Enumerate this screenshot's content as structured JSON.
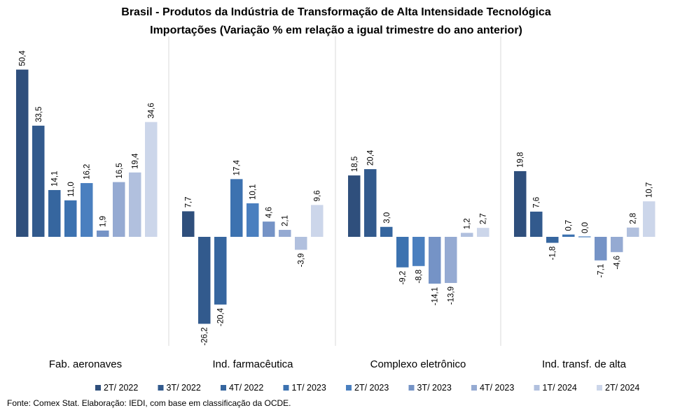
{
  "chart_data": {
    "type": "bar",
    "title": "Brasil - Produtos da Indústria de Transformação  de Alta Intensidade Tecnológica",
    "subtitle": "Importações (Variação % em relação a igual trimestre do ano anterior)",
    "categories": [
      "Fab. aeronaves",
      "Ind. farmacêutica",
      "Complexo eletrônico",
      "Ind. transf. de alta"
    ],
    "series": [
      {
        "name": "2T/ 2022",
        "color": "#2f4f7c",
        "values": [
          50.4,
          7.7,
          18.5,
          19.8
        ]
      },
      {
        "name": "3T/ 2022",
        "color": "#325a8d",
        "values": [
          33.5,
          -26.2,
          20.4,
          7.6
        ]
      },
      {
        "name": "4T/ 2022",
        "color": "#36669f",
        "values": [
          14.1,
          -20.4,
          3.0,
          -1.8
        ]
      },
      {
        "name": "1T/ 2023",
        "color": "#3c72b0",
        "values": [
          11.0,
          17.4,
          -9.2,
          0.7
        ]
      },
      {
        "name": "2T/ 2023",
        "color": "#4a7fbf",
        "values": [
          16.2,
          10.1,
          -8.8,
          0.0
        ]
      },
      {
        "name": "3T/ 2023",
        "color": "#7593c6",
        "values": [
          1.9,
          4.6,
          -14.1,
          -7.1
        ]
      },
      {
        "name": "4T/ 2023",
        "color": "#95aad2",
        "values": [
          16.5,
          2.1,
          -13.9,
          -4.6
        ]
      },
      {
        "name": "1T/ 2024",
        "color": "#b1c0de",
        "values": [
          19.4,
          -3.9,
          1.2,
          2.8
        ]
      },
      {
        "name": "2T/ 2024",
        "color": "#ccd6ea",
        "values": [
          34.6,
          9.6,
          2.7,
          10.7
        ]
      }
    ],
    "value_labels": [
      [
        "50,4",
        "33,5",
        "14,1",
        "11,0",
        "16,2",
        "1,9",
        "16,5",
        "19,4",
        "34,6"
      ],
      [
        "7,7",
        "-26,2",
        "-20,4",
        "17,4",
        "10,1",
        "4,6",
        "2,1",
        "-3,9",
        "9,6"
      ],
      [
        "18,5",
        "20,4",
        "3,0",
        "-9,2",
        "-8,8",
        "-14,1",
        "-13,9",
        "1,2",
        "2,7"
      ],
      [
        "19,8",
        "7,6",
        "-1,8",
        "0,7",
        "0,0",
        "-7,1",
        "-4,6",
        "2,8",
        "10,7"
      ]
    ],
    "ylim": [
      -32,
      53
    ],
    "grid": false,
    "legend_position": "bottom"
  },
  "source_note": "Fonte: Comex Stat. Elaboração: IEDI, com base em classificação da OCDE."
}
